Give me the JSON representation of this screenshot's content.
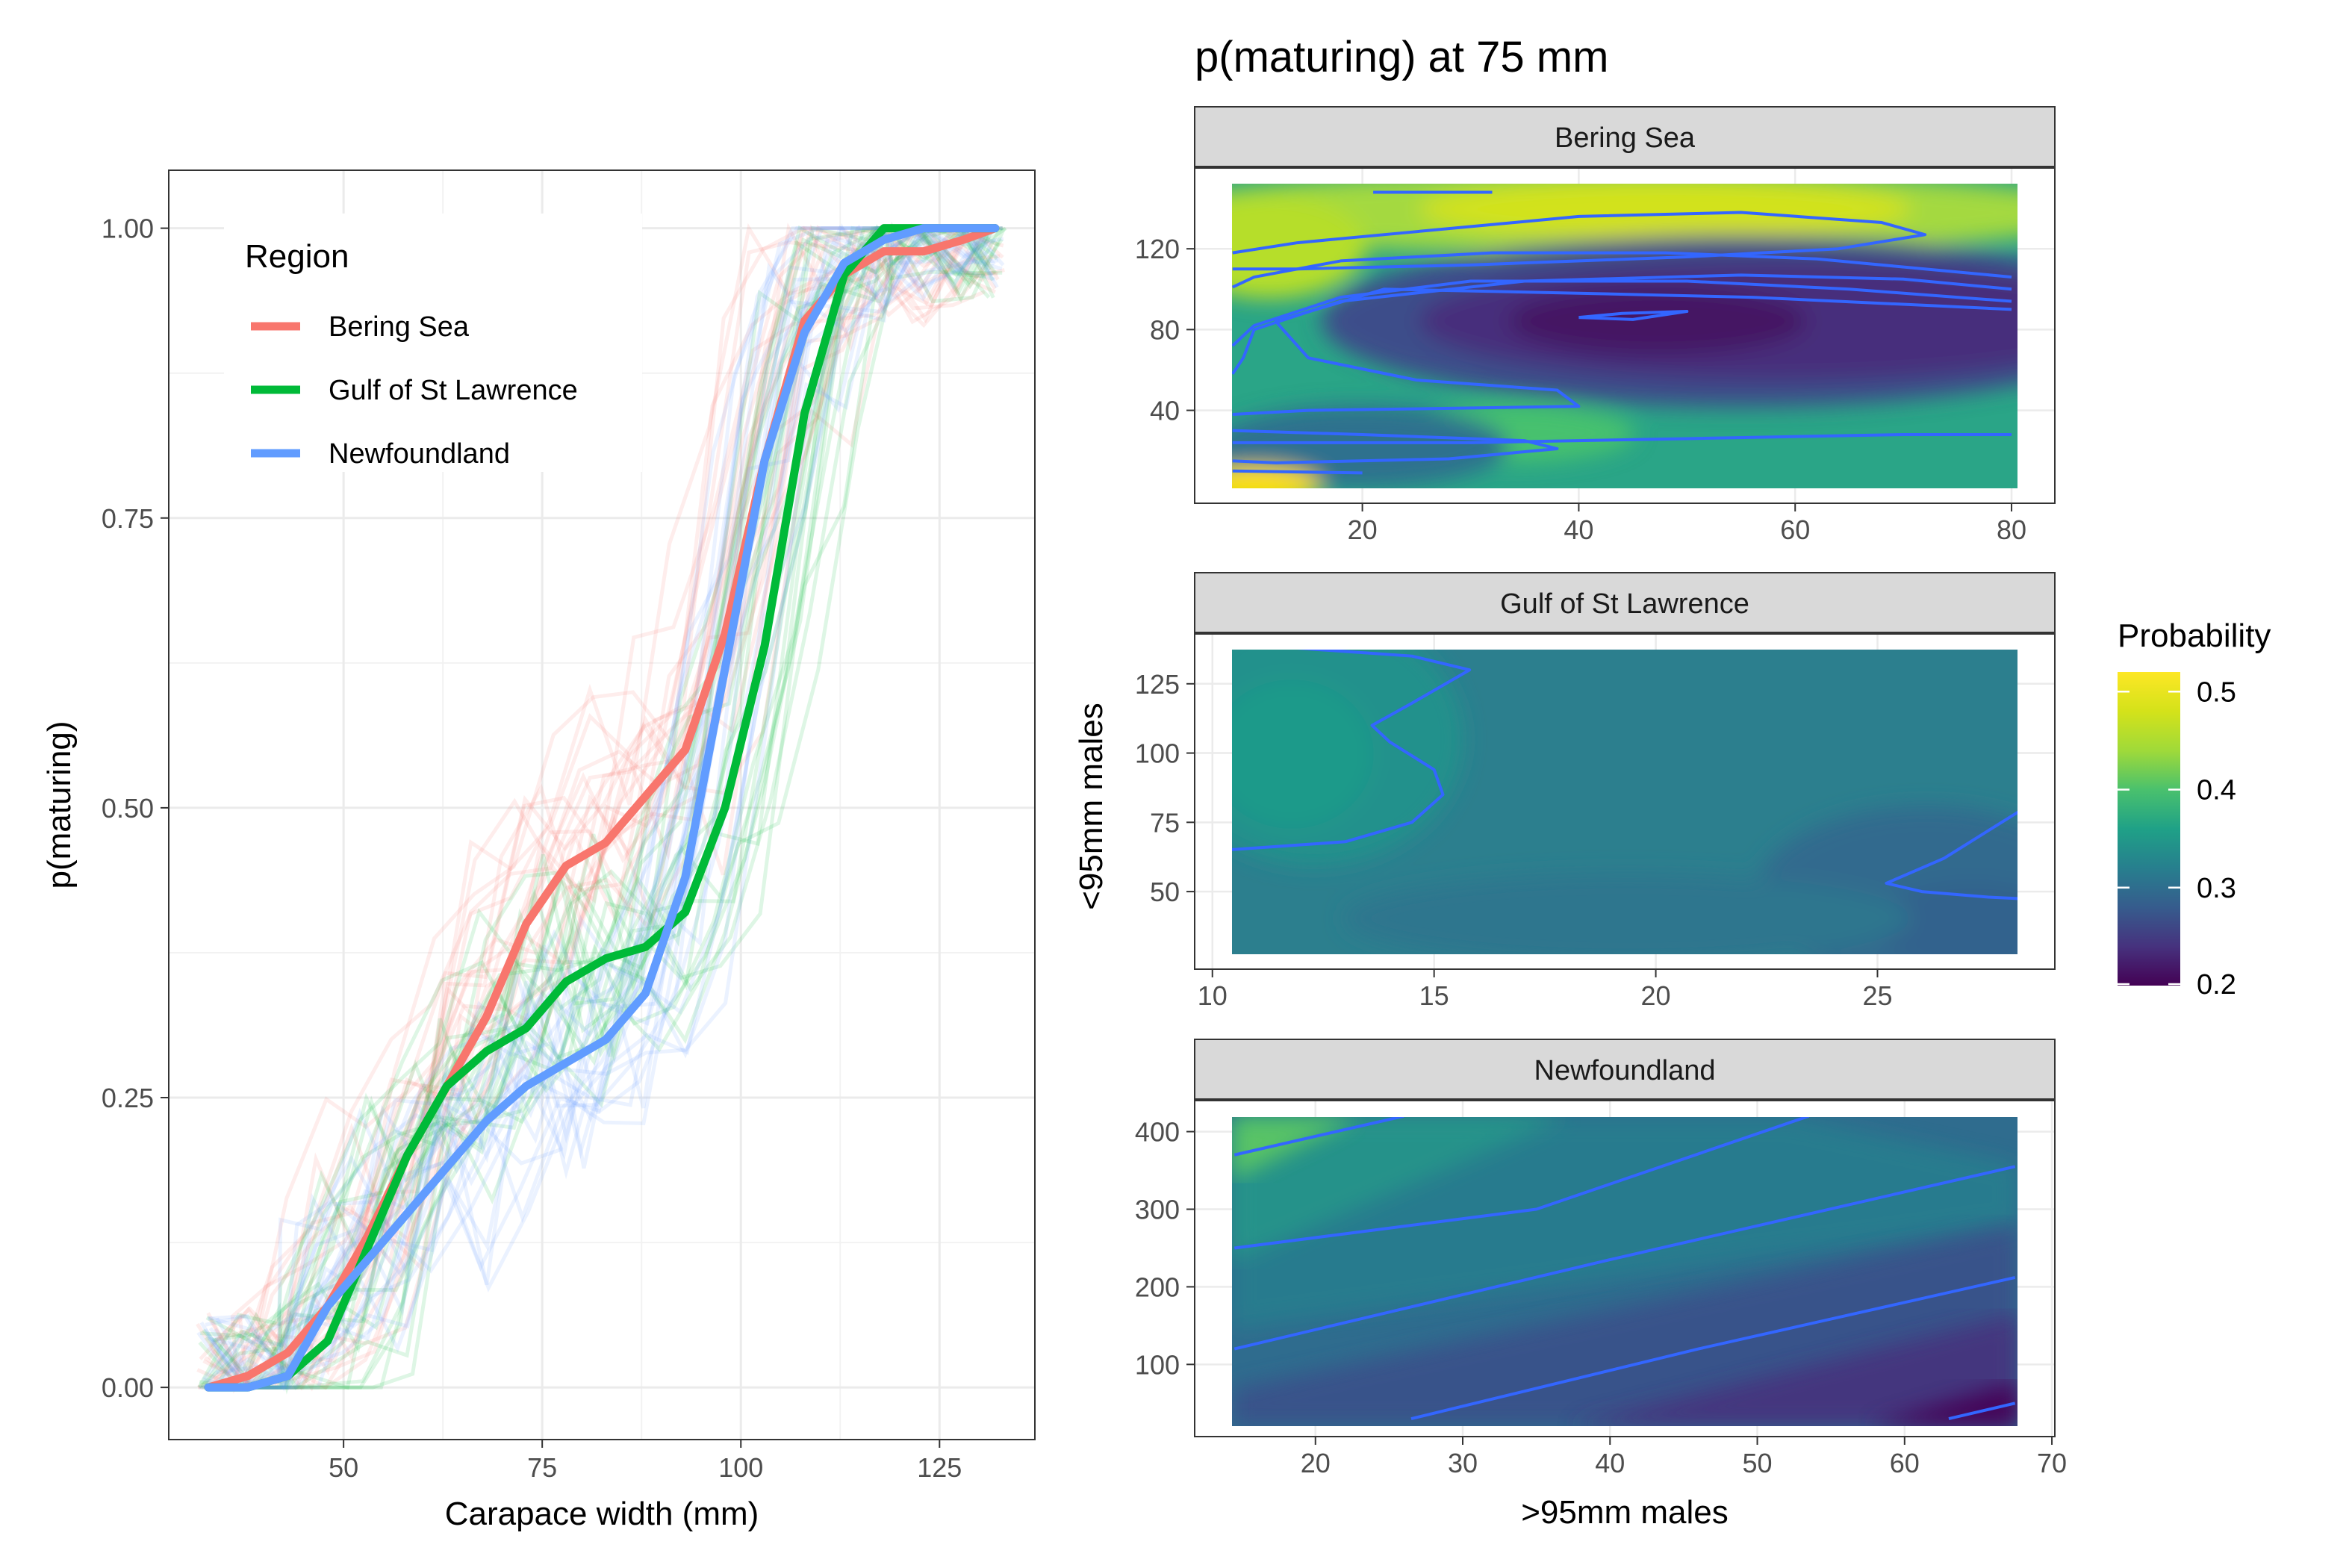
{
  "chart_data": [
    {
      "type": "line",
      "title": "",
      "xlabel": "Carapace width (mm)",
      "ylabel": "p(maturing)",
      "xlim": [
        28,
        137
      ],
      "ylim": [
        -0.045,
        1.05
      ],
      "x_ticks": [
        50,
        75,
        100,
        125
      ],
      "x_tick_labels": [
        "50",
        "75",
        "100",
        "125"
      ],
      "y_ticks": [
        0,
        0.25,
        0.5,
        0.75,
        1
      ],
      "y_tick_labels": [
        "0.00",
        "0.25",
        "0.50",
        "0.75",
        "1.00"
      ],
      "grid": true,
      "legend": {
        "title": "Region",
        "placement": "top-left"
      },
      "series": [
        {
          "name": "Bering Sea",
          "color": "#F8766D",
          "x": [
            33,
            38,
            43,
            48,
            53,
            58,
            63,
            68,
            73,
            78,
            83,
            88,
            93,
            98,
            103,
            108,
            113,
            118,
            123,
            128,
            132
          ],
          "values": [
            0.0,
            0.01,
            0.03,
            0.07,
            0.13,
            0.2,
            0.26,
            0.32,
            0.4,
            0.45,
            0.47,
            0.51,
            0.55,
            0.65,
            0.8,
            0.92,
            0.96,
            0.98,
            0.98,
            0.99,
            1.0
          ]
        },
        {
          "name": "Gulf of St Lawrence",
          "color": "#00BA38",
          "x": [
            33,
            38,
            43,
            48,
            53,
            58,
            63,
            68,
            73,
            78,
            83,
            88,
            93,
            98,
            103,
            108,
            113,
            118,
            123,
            128,
            132
          ],
          "values": [
            0.0,
            0.0,
            0.01,
            0.04,
            0.12,
            0.2,
            0.26,
            0.29,
            0.31,
            0.35,
            0.37,
            0.38,
            0.41,
            0.5,
            0.64,
            0.84,
            0.96,
            1.0,
            1.0,
            1.0,
            1.0
          ]
        },
        {
          "name": "Newfoundland",
          "color": "#619CFF",
          "x": [
            33,
            38,
            43,
            48,
            53,
            58,
            63,
            68,
            73,
            78,
            83,
            88,
            93,
            98,
            103,
            108,
            113,
            118,
            123,
            128,
            132
          ],
          "values": [
            0.0,
            0.0,
            0.01,
            0.07,
            0.11,
            0.15,
            0.19,
            0.23,
            0.26,
            0.28,
            0.3,
            0.34,
            0.44,
            0.62,
            0.8,
            0.91,
            0.97,
            0.99,
            1.0,
            1.0,
            1.0
          ]
        }
      ]
    },
    {
      "type": "heatmap",
      "title": "p(maturing) at 75 mm",
      "xlabel": ">95mm males",
      "ylabel": "<95mm males",
      "color_scale": {
        "name": "viridis",
        "legend_title": "Probability",
        "min": 0.2,
        "max": 0.52,
        "ticks": [
          0.2,
          0.3,
          0.4,
          0.5
        ],
        "tick_labels": [
          "0.2",
          "0.3",
          "0.4",
          "0.5"
        ]
      },
      "panels": [
        {
          "strip": "Bering Sea",
          "xlim": [
            4.5,
            84
          ],
          "ylim": [
            -6,
            160
          ],
          "x_ticks": [
            20,
            40,
            60,
            80
          ],
          "x_tick_labels": [
            "20",
            "40",
            "60",
            "80"
          ],
          "y_ticks": [
            40,
            80,
            120
          ],
          "y_tick_labels": [
            "40",
            "80",
            "120"
          ],
          "data_x": [
            8,
            80
          ],
          "data_y": [
            8,
            148
          ]
        },
        {
          "strip": "Gulf of St Lawrence",
          "xlim": [
            9.6,
            29
          ],
          "ylim": [
            22,
            143
          ],
          "x_ticks": [
            10,
            15,
            20,
            25
          ],
          "x_tick_labels": [
            "10",
            "15",
            "20",
            "25"
          ],
          "y_ticks": [
            50,
            75,
            100,
            125
          ],
          "y_tick_labels": [
            "50",
            "75",
            "100",
            "125"
          ],
          "data_x": [
            10.3,
            28.8
          ],
          "data_y": [
            28,
            138
          ]
        },
        {
          "strip": "Newfoundland",
          "xlim": [
            11.8,
            70.2
          ],
          "ylim": [
            7,
            440
          ],
          "x_ticks": [
            20,
            30,
            40,
            50,
            60,
            70
          ],
          "x_tick_labels": [
            "20",
            "30",
            "40",
            "50",
            "60",
            "70"
          ],
          "y_ticks": [
            100,
            200,
            300,
            400
          ],
          "y_tick_labels": [
            "100",
            "200",
            "300",
            "400"
          ],
          "data_x": [
            14.5,
            67.5
          ],
          "data_y": [
            30,
            420
          ]
        }
      ]
    }
  ]
}
